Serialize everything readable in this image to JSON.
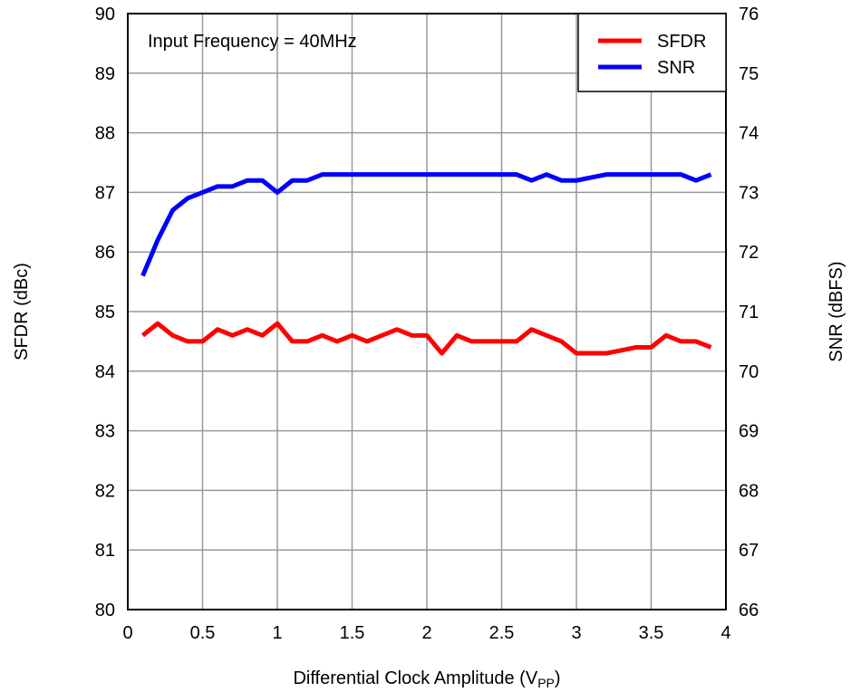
{
  "chart_data": {
    "type": "line",
    "annotation": "Input Frequency = 40MHz",
    "xlabel": "Differential Clock Amplitude (V",
    "xlabel_sub": "PP",
    "xlabel_end": ")",
    "ylabel": "SFDR (dBc)",
    "y2label": "SNR (dBFS)",
    "xlim": [
      0,
      4
    ],
    "ylim": [
      80,
      90
    ],
    "y2lim": [
      66,
      76
    ],
    "xticks": [
      "0",
      "0.5",
      "1",
      "1.5",
      "2",
      "2.5",
      "3",
      "3.5",
      "4"
    ],
    "yticks": [
      "80",
      "81",
      "82",
      "83",
      "84",
      "85",
      "86",
      "87",
      "88",
      "89",
      "90"
    ],
    "y2ticks": [
      "66",
      "67",
      "68",
      "69",
      "70",
      "71",
      "72",
      "73",
      "74",
      "75",
      "76"
    ],
    "grid": true,
    "legend_position": "top-right",
    "x": [
      0.1,
      0.2,
      0.3,
      0.4,
      0.5,
      0.6,
      0.7,
      0.8,
      0.9,
      1.0,
      1.1,
      1.2,
      1.3,
      1.4,
      1.5,
      1.6,
      1.7,
      1.8,
      1.9,
      2.0,
      2.1,
      2.2,
      2.3,
      2.4,
      2.5,
      2.6,
      2.7,
      2.8,
      2.9,
      3.0,
      3.1,
      3.2,
      3.3,
      3.4,
      3.5,
      3.6,
      3.7,
      3.8,
      3.9
    ],
    "series": [
      {
        "name": "SFDR",
        "axis": "left",
        "color": "#ff0000",
        "values": [
          84.6,
          84.8,
          84.6,
          84.5,
          84.5,
          84.7,
          84.6,
          84.7,
          84.6,
          84.8,
          84.5,
          84.5,
          84.6,
          84.5,
          84.6,
          84.5,
          84.6,
          84.7,
          84.6,
          84.6,
          84.3,
          84.6,
          84.5,
          84.5,
          84.5,
          84.5,
          84.7,
          84.6,
          84.5,
          84.3,
          84.3,
          84.3,
          84.35,
          84.4,
          84.4,
          84.6,
          84.5,
          84.5,
          84.4
        ]
      },
      {
        "name": "SNR",
        "axis": "right",
        "color": "#0000ff",
        "values": [
          71.6,
          72.2,
          72.7,
          72.9,
          73.0,
          73.1,
          73.1,
          73.2,
          73.2,
          73.0,
          73.2,
          73.2,
          73.3,
          73.3,
          73.3,
          73.3,
          73.3,
          73.3,
          73.3,
          73.3,
          73.3,
          73.3,
          73.3,
          73.3,
          73.3,
          73.3,
          73.2,
          73.3,
          73.2,
          73.2,
          73.25,
          73.3,
          73.3,
          73.3,
          73.3,
          73.3,
          73.3,
          73.2,
          73.3
        ]
      }
    ]
  }
}
